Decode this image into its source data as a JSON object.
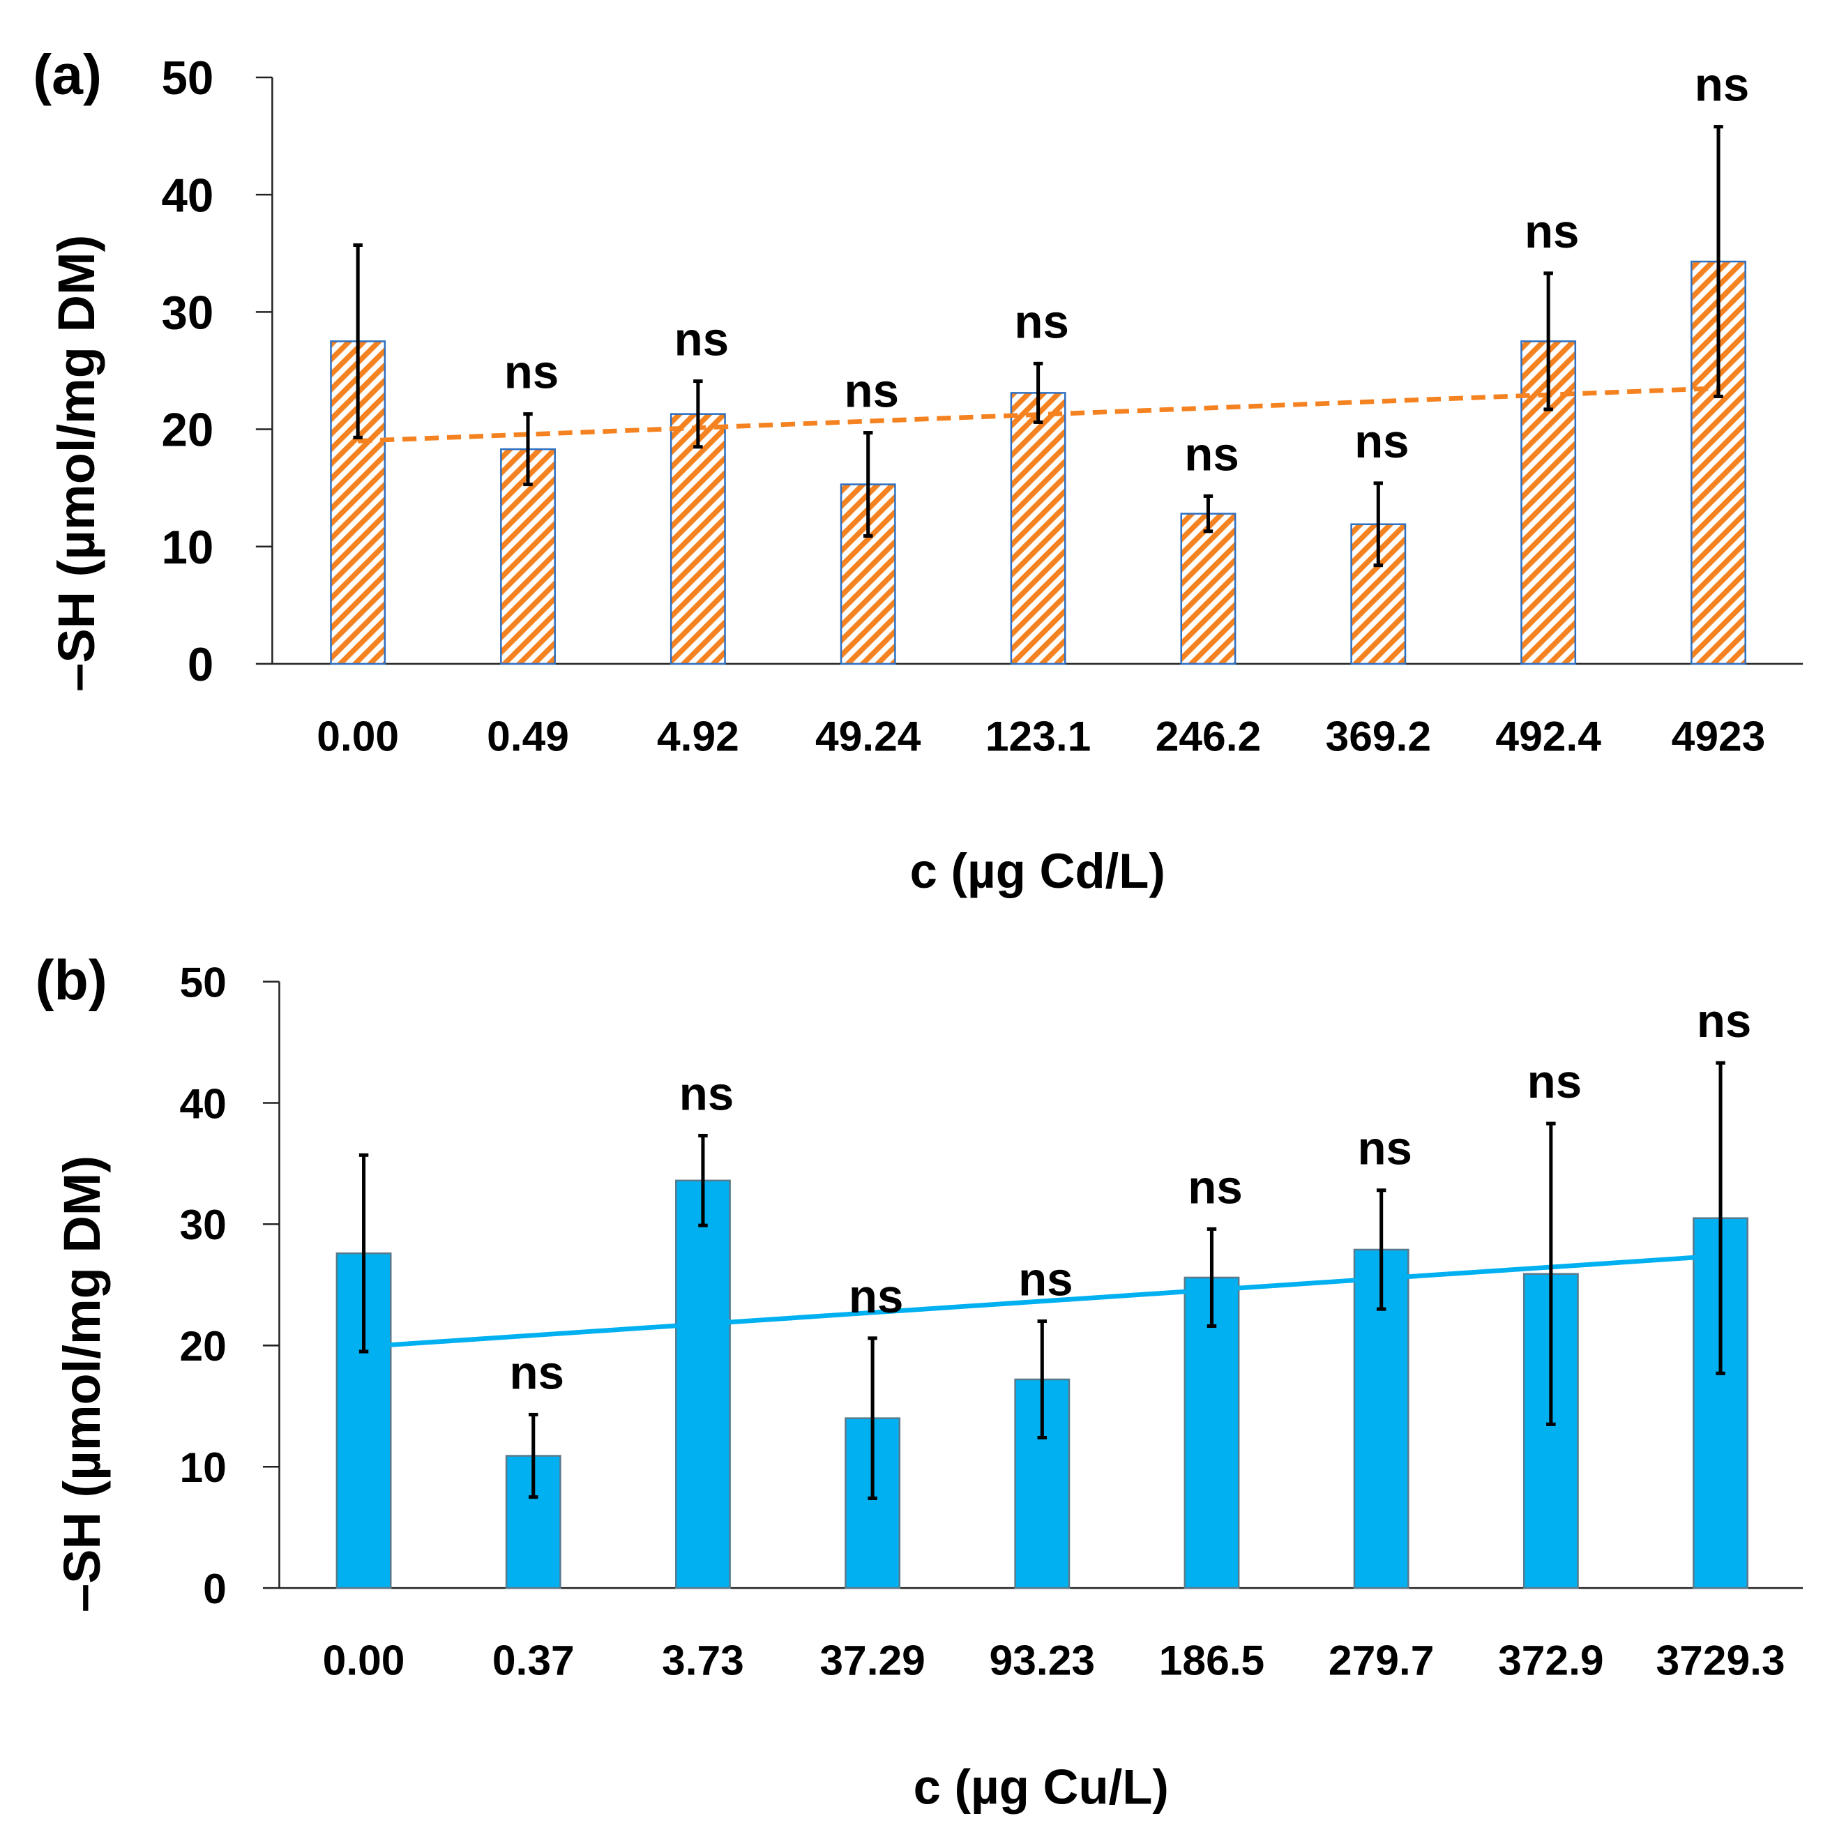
{
  "chart_data": [
    {
      "type": "bar",
      "panel_label": "(a)",
      "title": "",
      "xlabel": "c (µg Cd/L)",
      "ylabel": "–SH (µmol/mg DM)",
      "ylim": [
        0,
        50
      ],
      "yticks": [
        "0",
        "10",
        "20",
        "30",
        "40",
        "50"
      ],
      "categories": [
        "0.00",
        "0.49",
        "4.92",
        "49.24",
        "123.1",
        "246.2",
        "369.2",
        "492.4",
        "4923"
      ],
      "values": [
        27.5,
        18.3,
        21.3,
        15.3,
        23.1,
        12.8,
        11.9,
        27.5,
        34.3
      ],
      "errors": [
        8.2,
        3.0,
        2.8,
        4.4,
        2.5,
        1.5,
        3.5,
        5.8,
        11.5
      ],
      "annotations": [
        "",
        "ns",
        "ns",
        "ns",
        "ns",
        "ns",
        "ns",
        "ns",
        "ns"
      ],
      "trendline": {
        "style": "dashed",
        "start": 19.0,
        "end": 23.5
      },
      "bar_fill": "hatched",
      "bar_color": "#F58220",
      "bar_edge": "#2E6FC0",
      "trend_color": "#F58220",
      "grid": false
    },
    {
      "type": "bar",
      "panel_label": "(b)",
      "title": "",
      "xlabel": "c (µg Cu/L)",
      "ylabel": "–SH (µmol/mg DM)",
      "ylim": [
        0,
        50
      ],
      "yticks": [
        "0",
        "10",
        "20",
        "30",
        "40",
        "50"
      ],
      "categories": [
        "0.00",
        "0.37",
        "3.73",
        "37.29",
        "93.23",
        "186.5",
        "279.7",
        "372.9",
        "3729.3"
      ],
      "values": [
        27.6,
        10.9,
        33.6,
        14.0,
        17.2,
        25.6,
        27.9,
        25.9,
        30.5
      ],
      "errors": [
        8.1,
        3.4,
        3.7,
        6.6,
        4.8,
        4.0,
        4.9,
        12.4,
        12.8
      ],
      "annotations": [
        "",
        "ns",
        "ns",
        "ns",
        "ns",
        "ns",
        "ns",
        "ns",
        "ns"
      ],
      "trendline": {
        "style": "solid",
        "start": 19.9,
        "end": 27.4
      },
      "bar_fill": "solid",
      "bar_color": "#00B0F0",
      "bar_edge": "#5A7A8C",
      "trend_color": "#00B0F0",
      "grid": false
    }
  ]
}
